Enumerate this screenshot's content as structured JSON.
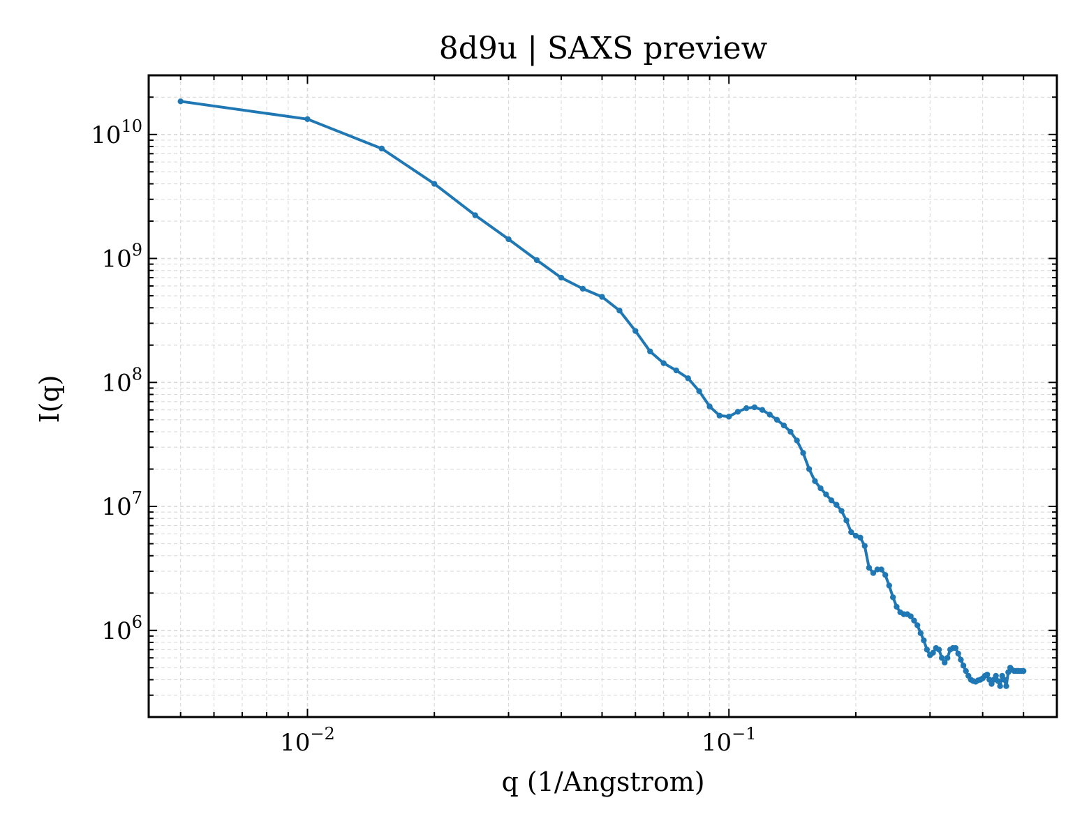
{
  "chart_data": {
    "type": "line",
    "title": "8d9u | SAXS preview",
    "xlabel": "q (1/Angstrom)",
    "ylabel": "I(q)",
    "xscale": "log",
    "yscale": "log",
    "xlim": [
      0.0042,
      0.6
    ],
    "ylim": [
      200000,
      30000000000
    ],
    "grid": true,
    "x_ticks": [
      {
        "value": 0.01,
        "base": "10",
        "exp": "−2"
      },
      {
        "value": 0.1,
        "base": "10",
        "exp": "−1"
      }
    ],
    "y_ticks": [
      {
        "value": 1000000,
        "base": "10",
        "exp": "6"
      },
      {
        "value": 10000000,
        "base": "10",
        "exp": "7"
      },
      {
        "value": 100000000,
        "base": "10",
        "exp": "8"
      },
      {
        "value": 1000000000,
        "base": "10",
        "exp": "9"
      },
      {
        "value": 10000000000,
        "base": "10",
        "exp": "10"
      }
    ],
    "colors": {
      "line": "#1f77b4",
      "grid": "#d9d9d9",
      "axes": "#000000"
    },
    "series": [
      {
        "x": [
          0.005,
          0.01,
          0.015,
          0.02,
          0.025,
          0.03,
          0.035,
          0.04,
          0.045,
          0.05,
          0.055,
          0.06,
          0.065,
          0.07,
          0.075,
          0.08,
          0.085,
          0.09,
          0.095,
          0.1,
          0.105,
          0.11,
          0.115,
          0.12,
          0.125,
          0.13,
          0.135,
          0.14,
          0.145,
          0.15,
          0.155,
          0.16,
          0.165,
          0.17,
          0.175,
          0.18,
          0.185,
          0.19,
          0.195,
          0.2,
          0.205,
          0.21,
          0.215,
          0.22,
          0.225,
          0.23,
          0.235,
          0.24,
          0.245,
          0.25,
          0.255,
          0.26,
          0.265,
          0.27,
          0.275,
          0.28,
          0.285,
          0.29,
          0.295,
          0.3,
          0.305,
          0.31,
          0.315,
          0.32,
          0.325,
          0.33,
          0.335,
          0.34,
          0.345,
          0.35,
          0.355,
          0.36,
          0.365,
          0.37,
          0.375,
          0.38,
          0.385,
          0.39,
          0.395,
          0.4,
          0.405,
          0.41,
          0.415,
          0.42,
          0.425,
          0.43,
          0.435,
          0.44,
          0.445,
          0.45,
          0.455,
          0.46,
          0.465,
          0.47,
          0.475,
          0.48,
          0.485,
          0.49,
          0.495,
          0.5
        ],
        "y": [
          18500000000,
          13300000000,
          7700000000,
          4000000000,
          2230000000,
          1430000000,
          970000000,
          700000000,
          570000000,
          490000000,
          380000000,
          260000000,
          178000000,
          143000000,
          125000000,
          108000000,
          85000000,
          64000000,
          54000000,
          53000000,
          58000000,
          62000000,
          63000000,
          60000000,
          55000000,
          50000000,
          45000000,
          40000000,
          34000000,
          27000000,
          20000000,
          16000000,
          14000000,
          12500000,
          11200000,
          10300000,
          9200000,
          7700000,
          6200000,
          5800000,
          5600000,
          4800000,
          3200000,
          2900000,
          3100000,
          3100000,
          2800000,
          2300000,
          1850000,
          1550000,
          1400000,
          1350000,
          1350000,
          1300000,
          1200000,
          1100000,
          950000,
          830000,
          700000,
          630000,
          660000,
          720000,
          700000,
          600000,
          550000,
          600000,
          700000,
          720000,
          720000,
          650000,
          580000,
          520000,
          470000,
          430000,
          400000,
          390000,
          385000,
          395000,
          400000,
          410000,
          430000,
          440000,
          400000,
          370000,
          400000,
          430000,
          390000,
          355000,
          430000,
          400000,
          355000,
          460000,
          500000,
          480000,
          470000,
          470000,
          470000,
          470000,
          470000,
          470000
        ]
      }
    ]
  }
}
